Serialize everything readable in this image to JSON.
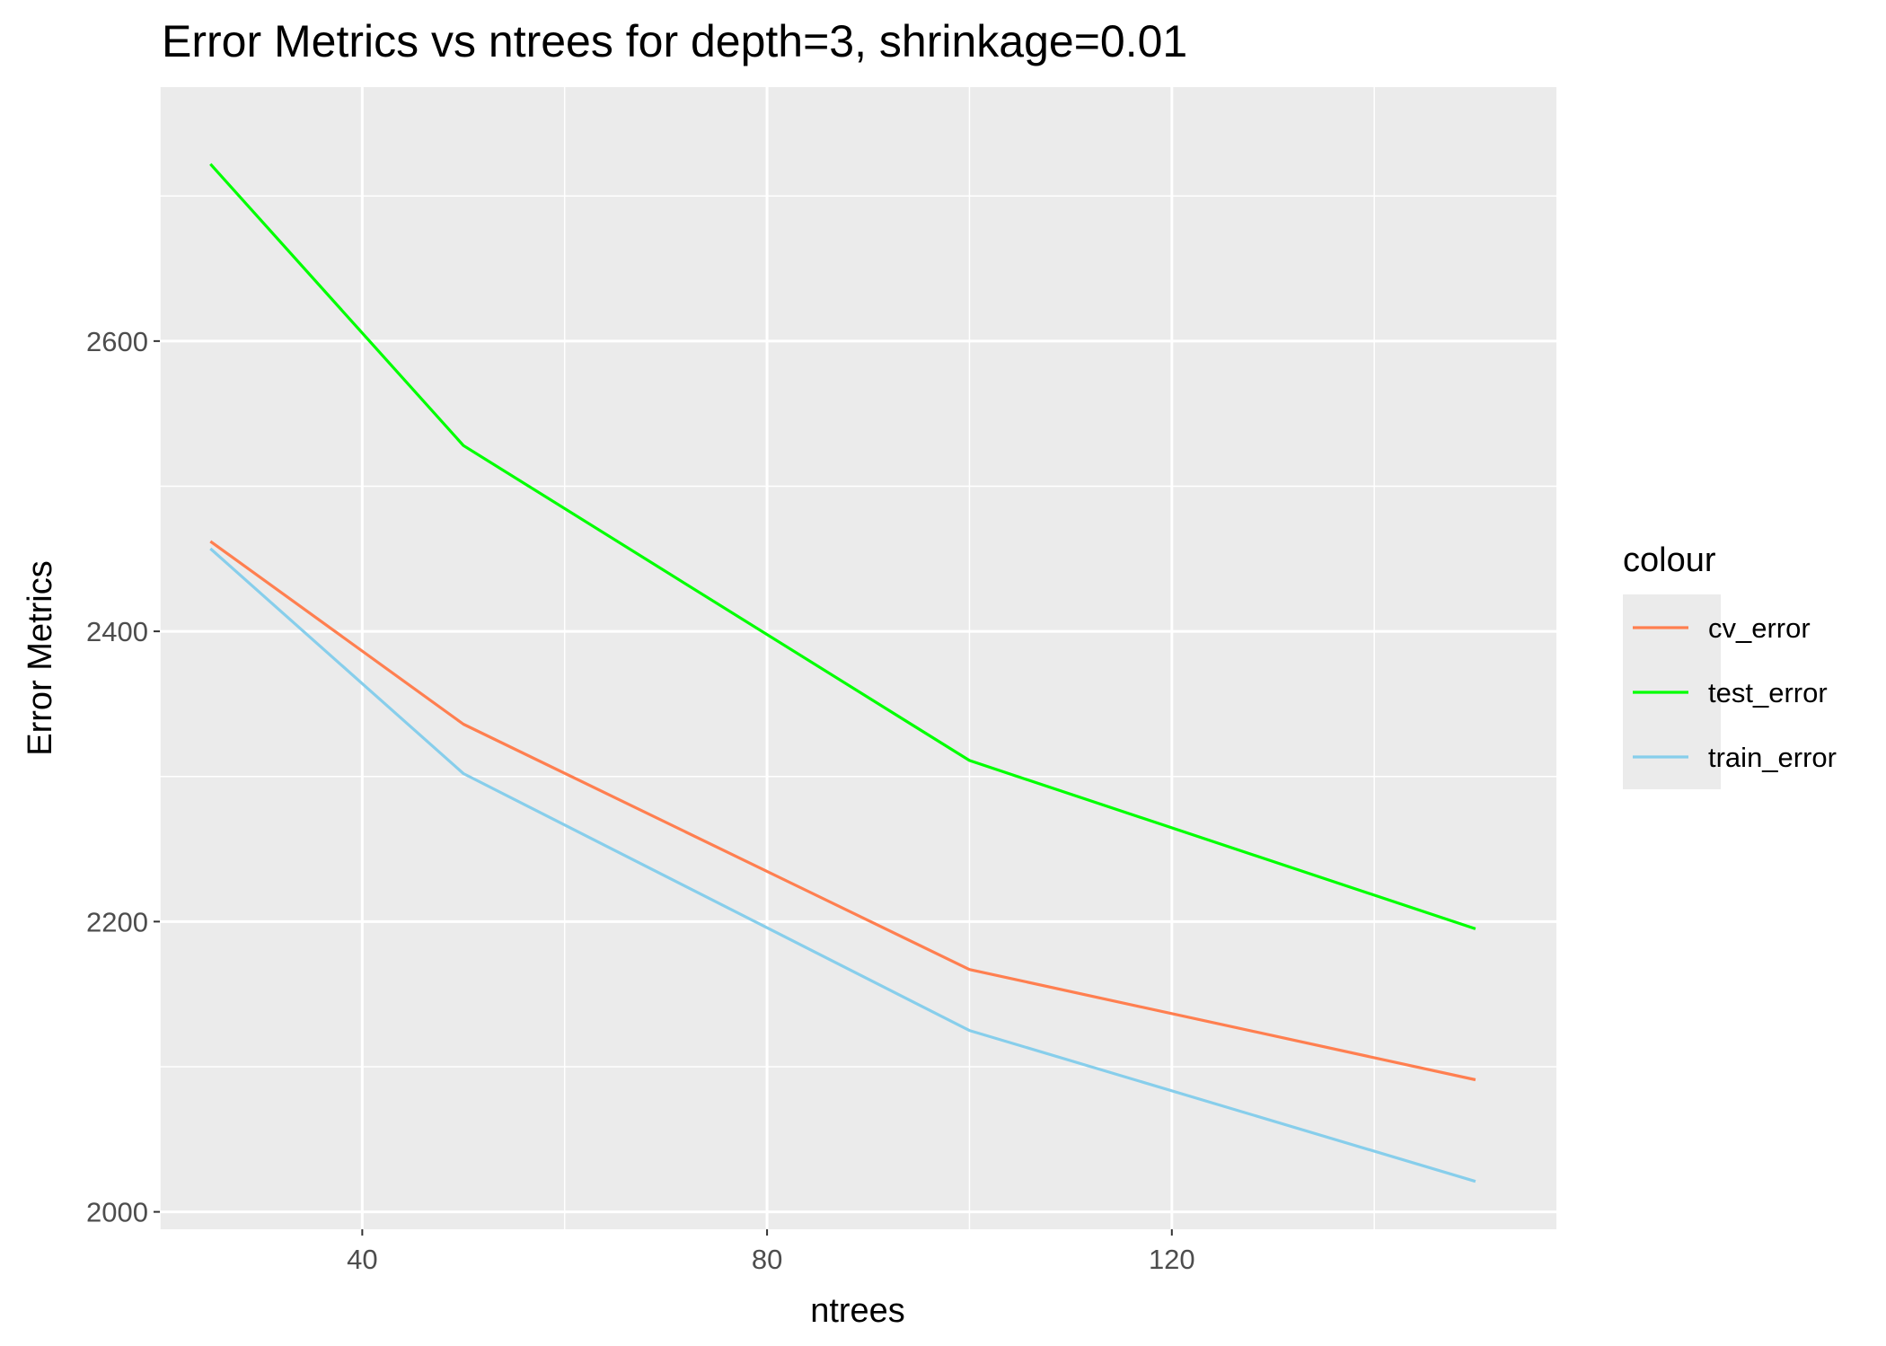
{
  "chart_data": {
    "type": "line",
    "title": "Error Metrics vs ntrees for depth=3, shrinkage=0.01",
    "xlabel": "ntrees",
    "ylabel": "Error Metrics",
    "x": [
      25,
      50,
      100,
      150
    ],
    "xlim": [
      20,
      158
    ],
    "ylim": [
      1988,
      2775
    ],
    "xticks": [
      40,
      80,
      120
    ],
    "xtick_labels": [
      "40",
      "80",
      "120"
    ],
    "x_minor": [
      20,
      60,
      100,
      140
    ],
    "yticks": [
      2000,
      2200,
      2400,
      2600
    ],
    "ytick_labels": [
      "2000",
      "2200",
      "2400",
      "2600"
    ],
    "y_minor": [
      2100,
      2300,
      2500,
      2700
    ],
    "grid": true,
    "panel_background": "#ebebeb",
    "grid_color": "#ffffff",
    "legend": {
      "title": "colour",
      "position": "right"
    },
    "series": [
      {
        "name": "cv_error",
        "color": "#ff7f50",
        "values": [
          2462,
          2336,
          2167,
          2091
        ]
      },
      {
        "name": "test_error",
        "color": "#00ff00",
        "values": [
          2722,
          2528,
          2311,
          2195
        ]
      },
      {
        "name": "train_error",
        "color": "#87ceeb",
        "values": [
          2457,
          2302,
          2125,
          2021
        ]
      }
    ]
  }
}
